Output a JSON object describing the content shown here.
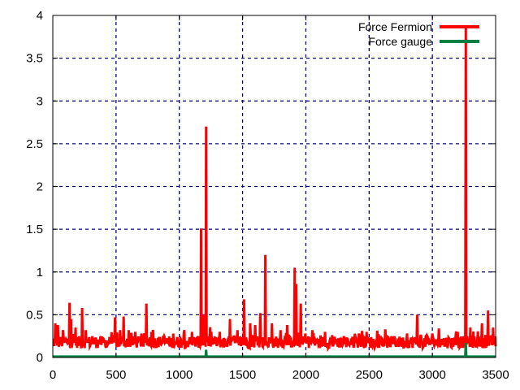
{
  "chart_data": {
    "type": "line",
    "title": "",
    "xlabel": "",
    "ylabel": "",
    "xlim": [
      0,
      3500
    ],
    "ylim": [
      0,
      4
    ],
    "xticks": [
      "0",
      "500",
      "1000",
      "1500",
      "2000",
      "2500",
      "3000",
      "3500"
    ],
    "yticks": [
      "0",
      "0.5",
      "1",
      "1.5",
      "2",
      "2.5",
      "3",
      "3.5",
      "4"
    ],
    "grid": true,
    "legend_position": "top-right",
    "series": [
      {
        "name": "Force Fermion",
        "color": "#ff0000",
        "baseline": 0.18,
        "spikes": [
          [
            20,
            0.4
          ],
          [
            40,
            0.38
          ],
          [
            80,
            0.32
          ],
          [
            130,
            0.64
          ],
          [
            145,
            0.45
          ],
          [
            180,
            0.35
          ],
          [
            230,
            0.58
          ],
          [
            260,
            0.32
          ],
          [
            310,
            0.25
          ],
          [
            400,
            0.22
          ],
          [
            490,
            0.47
          ],
          [
            530,
            0.32
          ],
          [
            560,
            0.48
          ],
          [
            600,
            0.32
          ],
          [
            650,
            0.3
          ],
          [
            700,
            0.28
          ],
          [
            740,
            0.63
          ],
          [
            780,
            0.3
          ],
          [
            880,
            0.25
          ],
          [
            950,
            0.28
          ],
          [
            1040,
            0.32
          ],
          [
            1100,
            0.3
          ],
          [
            1170,
            1.51
          ],
          [
            1190,
            0.5
          ],
          [
            1210,
            2.7
          ],
          [
            1250,
            0.3
          ],
          [
            1320,
            0.3
          ],
          [
            1400,
            0.45
          ],
          [
            1460,
            0.32
          ],
          [
            1510,
            0.68
          ],
          [
            1560,
            0.4
          ],
          [
            1600,
            0.38
          ],
          [
            1640,
            0.52
          ],
          [
            1680,
            1.2
          ],
          [
            1730,
            0.4
          ],
          [
            1800,
            0.32
          ],
          [
            1850,
            0.38
          ],
          [
            1910,
            1.05
          ],
          [
            1925,
            0.86
          ],
          [
            1960,
            0.63
          ],
          [
            2050,
            0.32
          ],
          [
            2150,
            0.3
          ],
          [
            2300,
            0.25
          ],
          [
            2420,
            0.28
          ],
          [
            2480,
            0.3
          ],
          [
            2600,
            0.22
          ],
          [
            2700,
            0.25
          ],
          [
            2800,
            0.28
          ],
          [
            2880,
            0.5
          ],
          [
            3000,
            0.28
          ],
          [
            3100,
            0.22
          ],
          [
            3200,
            0.3
          ],
          [
            3262,
            3.88
          ],
          [
            3300,
            0.35
          ],
          [
            3390,
            0.4
          ],
          [
            3440,
            0.55
          ],
          [
            3480,
            0.35
          ]
        ]
      },
      {
        "name": "Force gauge",
        "color": "#008040",
        "baseline": 0.01,
        "spikes": [
          [
            1210,
            0.09
          ],
          [
            3262,
            0.17
          ]
        ]
      }
    ]
  }
}
